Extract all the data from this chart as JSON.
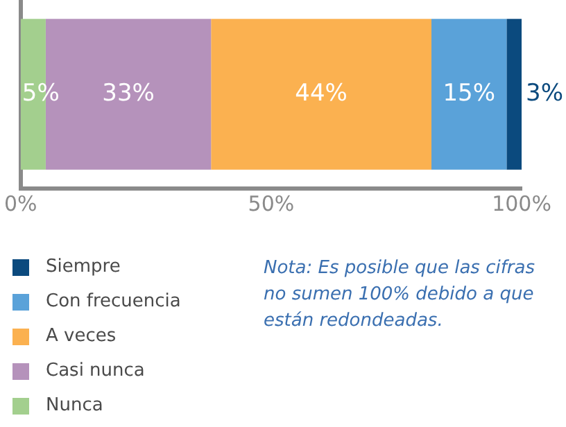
{
  "chart_data": {
    "type": "bar",
    "orientation": "horizontal",
    "stacked": true,
    "categories": [
      null
    ],
    "series": [
      {
        "name": "Nunca",
        "color": "#a3cf8e",
        "values": [
          5
        ],
        "value_labels": [
          "5%"
        ]
      },
      {
        "name": "Casi nunca",
        "color": "#b592bb",
        "values": [
          33
        ],
        "value_labels": [
          "33%"
        ]
      },
      {
        "name": "A veces",
        "color": "#fbb150",
        "values": [
          44
        ],
        "value_labels": [
          "44%"
        ]
      },
      {
        "name": "Con frecuencia",
        "color": "#5aa2d9",
        "values": [
          15
        ],
        "value_labels": [
          "15%"
        ]
      },
      {
        "name": "Siempre",
        "color": "#0b4a7e",
        "values": [
          3
        ],
        "value_labels": [
          "3%"
        ]
      }
    ],
    "xlim": [
      0,
      100
    ],
    "xticks": [
      {
        "value": 0,
        "label": "0%"
      },
      {
        "value": 50,
        "label": "50%"
      },
      {
        "value": 100,
        "label": "100%"
      }
    ],
    "grid": false,
    "legend": "bottom left",
    "annotations": [
      "Nota: Es posible que las cifras no sumen 100% debido a que están redondeadas."
    ]
  }
}
